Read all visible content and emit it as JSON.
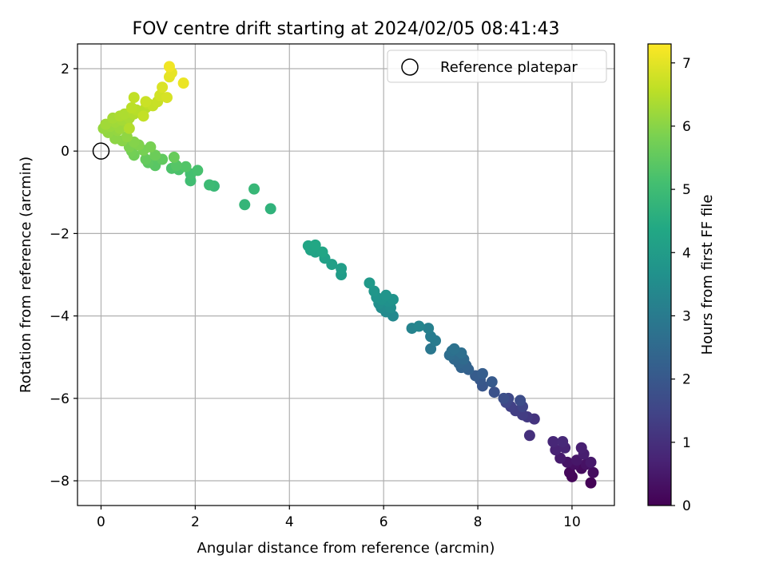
{
  "chart_data": {
    "type": "scatter",
    "title": "FOV centre drift starting at 2024/02/05 08:41:43",
    "xlabel": "Angular distance from reference (arcmin)",
    "ylabel": "Rotation from reference (arcmin)",
    "xlim": [
      -0.5,
      10.9
    ],
    "ylim": [
      -8.6,
      2.6
    ],
    "xticks": [
      0,
      2,
      4,
      6,
      8,
      10
    ],
    "yticks": [
      -8,
      -6,
      -4,
      -2,
      0,
      2
    ],
    "grid": true,
    "legend": {
      "position": "top-right",
      "entries": [
        {
          "label": "Reference platepar",
          "marker": "open-circle"
        }
      ]
    },
    "reference_point": {
      "x": 0,
      "y": 0
    },
    "colorbar": {
      "label": "Hours from first FF file",
      "colormap": "viridis",
      "range": [
        0,
        7.3
      ],
      "ticks": [
        0,
        1,
        2,
        3,
        4,
        5,
        6,
        7
      ]
    },
    "series": [
      {
        "points": [
          {
            "x": 10.4,
            "y": -8.05,
            "t": 0.05
          },
          {
            "x": 10.0,
            "y": -7.9,
            "t": 0.1
          },
          {
            "x": 9.95,
            "y": -7.8,
            "t": 0.15
          },
          {
            "x": 10.2,
            "y": -7.7,
            "t": 0.2
          },
          {
            "x": 10.45,
            "y": -7.8,
            "t": 0.25
          },
          {
            "x": 10.05,
            "y": -7.6,
            "t": 0.3
          },
          {
            "x": 10.3,
            "y": -7.6,
            "t": 0.35
          },
          {
            "x": 9.9,
            "y": -7.55,
            "t": 0.4
          },
          {
            "x": 10.1,
            "y": -7.5,
            "t": 0.45
          },
          {
            "x": 10.4,
            "y": -7.55,
            "t": 0.5
          },
          {
            "x": 9.75,
            "y": -7.45,
            "t": 0.55
          },
          {
            "x": 10.25,
            "y": -7.35,
            "t": 0.6
          },
          {
            "x": 10.2,
            "y": -7.2,
            "t": 0.65
          },
          {
            "x": 9.65,
            "y": -7.25,
            "t": 0.7
          },
          {
            "x": 9.85,
            "y": -7.2,
            "t": 0.75
          },
          {
            "x": 9.6,
            "y": -7.05,
            "t": 0.8
          },
          {
            "x": 9.8,
            "y": -7.05,
            "t": 0.85
          },
          {
            "x": 9.1,
            "y": -6.9,
            "t": 1.0
          },
          {
            "x": 9.2,
            "y": -6.5,
            "t": 1.1
          },
          {
            "x": 9.05,
            "y": -6.45,
            "t": 1.2
          },
          {
            "x": 8.95,
            "y": -6.4,
            "t": 1.3
          },
          {
            "x": 8.8,
            "y": -6.3,
            "t": 1.35
          },
          {
            "x": 8.7,
            "y": -6.2,
            "t": 1.4
          },
          {
            "x": 8.95,
            "y": -6.2,
            "t": 1.5
          },
          {
            "x": 8.6,
            "y": -6.1,
            "t": 1.55
          },
          {
            "x": 8.65,
            "y": -6.0,
            "t": 1.6
          },
          {
            "x": 8.9,
            "y": -6.05,
            "t": 1.7
          },
          {
            "x": 8.55,
            "y": -6.0,
            "t": 1.75
          },
          {
            "x": 8.35,
            "y": -5.85,
            "t": 1.85
          },
          {
            "x": 8.1,
            "y": -5.7,
            "t": 1.95
          },
          {
            "x": 8.05,
            "y": -5.55,
            "t": 2.0
          },
          {
            "x": 8.3,
            "y": -5.6,
            "t": 2.05
          },
          {
            "x": 7.95,
            "y": -5.45,
            "t": 2.1
          },
          {
            "x": 8.1,
            "y": -5.4,
            "t": 2.15
          },
          {
            "x": 7.8,
            "y": -5.3,
            "t": 2.25
          },
          {
            "x": 7.65,
            "y": -5.25,
            "t": 2.3
          },
          {
            "x": 7.75,
            "y": -5.2,
            "t": 2.35
          },
          {
            "x": 7.6,
            "y": -5.15,
            "t": 2.4
          },
          {
            "x": 7.5,
            "y": -5.05,
            "t": 2.45
          },
          {
            "x": 7.7,
            "y": -5.05,
            "t": 2.5
          },
          {
            "x": 7.55,
            "y": -4.95,
            "t": 2.55
          },
          {
            "x": 7.4,
            "y": -4.95,
            "t": 2.6
          },
          {
            "x": 7.65,
            "y": -4.9,
            "t": 2.65
          },
          {
            "x": 7.45,
            "y": -4.85,
            "t": 2.7
          },
          {
            "x": 7.5,
            "y": -4.8,
            "t": 2.75
          },
          {
            "x": 7.0,
            "y": -4.8,
            "t": 2.9
          },
          {
            "x": 7.1,
            "y": -4.6,
            "t": 3.0
          },
          {
            "x": 7.0,
            "y": -4.5,
            "t": 3.05
          },
          {
            "x": 6.95,
            "y": -4.3,
            "t": 3.15
          },
          {
            "x": 6.6,
            "y": -4.3,
            "t": 3.25
          },
          {
            "x": 6.75,
            "y": -4.25,
            "t": 3.3
          },
          {
            "x": 6.2,
            "y": -4.0,
            "t": 3.4
          },
          {
            "x": 6.05,
            "y": -3.9,
            "t": 3.45
          },
          {
            "x": 5.95,
            "y": -3.8,
            "t": 3.5
          },
          {
            "x": 6.15,
            "y": -3.8,
            "t": 3.55
          },
          {
            "x": 5.9,
            "y": -3.7,
            "t": 3.6
          },
          {
            "x": 6.1,
            "y": -3.65,
            "t": 3.65
          },
          {
            "x": 5.95,
            "y": -3.6,
            "t": 3.7
          },
          {
            "x": 6.2,
            "y": -3.6,
            "t": 3.72
          },
          {
            "x": 5.85,
            "y": -3.55,
            "t": 3.75
          },
          {
            "x": 6.05,
            "y": -3.5,
            "t": 3.78
          },
          {
            "x": 5.8,
            "y": -3.4,
            "t": 3.82
          },
          {
            "x": 5.7,
            "y": -3.2,
            "t": 3.9
          },
          {
            "x": 5.1,
            "y": -3.0,
            "t": 4.0
          },
          {
            "x": 5.1,
            "y": -2.85,
            "t": 4.05
          },
          {
            "x": 4.9,
            "y": -2.75,
            "t": 4.1
          },
          {
            "x": 4.75,
            "y": -2.6,
            "t": 4.15
          },
          {
            "x": 4.55,
            "y": -2.45,
            "t": 4.2
          },
          {
            "x": 4.45,
            "y": -2.4,
            "t": 4.25
          },
          {
            "x": 4.7,
            "y": -2.45,
            "t": 4.28
          },
          {
            "x": 4.4,
            "y": -2.3,
            "t": 4.3
          },
          {
            "x": 4.55,
            "y": -2.28,
            "t": 4.35
          },
          {
            "x": 3.6,
            "y": -1.4,
            "t": 4.7
          },
          {
            "x": 3.05,
            "y": -1.3,
            "t": 4.8
          },
          {
            "x": 3.25,
            "y": -0.92,
            "t": 4.85
          },
          {
            "x": 2.4,
            "y": -0.85,
            "t": 4.9
          },
          {
            "x": 2.3,
            "y": -0.82,
            "t": 4.95
          },
          {
            "x": 1.9,
            "y": -0.72,
            "t": 5.05
          },
          {
            "x": 1.9,
            "y": -0.55,
            "t": 5.1
          },
          {
            "x": 2.05,
            "y": -0.47,
            "t": 5.15
          },
          {
            "x": 1.65,
            "y": -0.45,
            "t": 5.2
          },
          {
            "x": 1.5,
            "y": -0.42,
            "t": 5.25
          },
          {
            "x": 1.8,
            "y": -0.38,
            "t": 5.3
          },
          {
            "x": 1.6,
            "y": -0.35,
            "t": 5.35
          },
          {
            "x": 1.15,
            "y": -0.35,
            "t": 5.4
          },
          {
            "x": 1.0,
            "y": -0.28,
            "t": 5.45
          },
          {
            "x": 1.3,
            "y": -0.2,
            "t": 5.5
          },
          {
            "x": 0.95,
            "y": -0.2,
            "t": 5.55
          },
          {
            "x": 1.55,
            "y": -0.15,
            "t": 5.6
          },
          {
            "x": 1.15,
            "y": -0.1,
            "t": 5.65
          },
          {
            "x": 0.7,
            "y": -0.1,
            "t": 5.7
          },
          {
            "x": 0.65,
            "y": 0.0,
            "t": 5.75
          },
          {
            "x": 0.9,
            "y": 0.02,
            "t": 5.78
          },
          {
            "x": 1.05,
            "y": 0.1,
            "t": 5.8
          },
          {
            "x": 0.6,
            "y": 0.1,
            "t": 5.85
          },
          {
            "x": 0.8,
            "y": 0.15,
            "t": 5.9
          },
          {
            "x": 0.7,
            "y": 0.22,
            "t": 5.95
          },
          {
            "x": 0.45,
            "y": 0.25,
            "t": 6.0
          },
          {
            "x": 0.3,
            "y": 0.3,
            "t": 6.05
          },
          {
            "x": 0.55,
            "y": 0.35,
            "t": 6.08
          },
          {
            "x": 0.15,
            "y": 0.45,
            "t": 6.1
          },
          {
            "x": 0.35,
            "y": 0.5,
            "t": 6.12
          },
          {
            "x": 0.05,
            "y": 0.55,
            "t": 6.15
          },
          {
            "x": 0.2,
            "y": 0.6,
            "t": 6.18
          },
          {
            "x": 0.4,
            "y": 0.55,
            "t": 6.2
          },
          {
            "x": 0.55,
            "y": 0.65,
            "t": 6.22
          },
          {
            "x": 0.3,
            "y": 0.7,
            "t": 6.25
          },
          {
            "x": 0.1,
            "y": 0.65,
            "t": 6.27
          },
          {
            "x": 0.45,
            "y": 0.75,
            "t": 6.3
          },
          {
            "x": 0.25,
            "y": 0.8,
            "t": 6.32
          },
          {
            "x": 0.6,
            "y": 0.8,
            "t": 6.35
          },
          {
            "x": 0.4,
            "y": 0.85,
            "t": 6.38
          },
          {
            "x": 0.5,
            "y": 0.9,
            "t": 6.4
          },
          {
            "x": 0.7,
            "y": 0.9,
            "t": 6.43
          },
          {
            "x": 0.6,
            "y": 0.55,
            "t": 6.45
          },
          {
            "x": 0.85,
            "y": 0.95,
            "t": 6.48
          },
          {
            "x": 0.75,
            "y": 1.0,
            "t": 6.5
          },
          {
            "x": 0.95,
            "y": 1.05,
            "t": 6.53
          },
          {
            "x": 0.65,
            "y": 1.05,
            "t": 6.55
          },
          {
            "x": 1.0,
            "y": 1.15,
            "t": 6.6
          },
          {
            "x": 0.7,
            "y": 1.3,
            "t": 6.62
          },
          {
            "x": 0.9,
            "y": 0.85,
            "t": 6.64
          },
          {
            "x": 1.1,
            "y": 1.1,
            "t": 6.66
          },
          {
            "x": 1.2,
            "y": 1.2,
            "t": 6.7
          },
          {
            "x": 0.95,
            "y": 1.2,
            "t": 6.72
          },
          {
            "x": 1.25,
            "y": 1.35,
            "t": 6.8
          },
          {
            "x": 1.4,
            "y": 1.3,
            "t": 6.85
          },
          {
            "x": 1.3,
            "y": 1.55,
            "t": 6.9
          },
          {
            "x": 1.45,
            "y": 1.8,
            "t": 7.0
          },
          {
            "x": 1.5,
            "y": 1.9,
            "t": 7.05
          },
          {
            "x": 1.75,
            "y": 1.65,
            "t": 7.1
          },
          {
            "x": 1.45,
            "y": 2.05,
            "t": 7.15
          }
        ]
      }
    ]
  }
}
